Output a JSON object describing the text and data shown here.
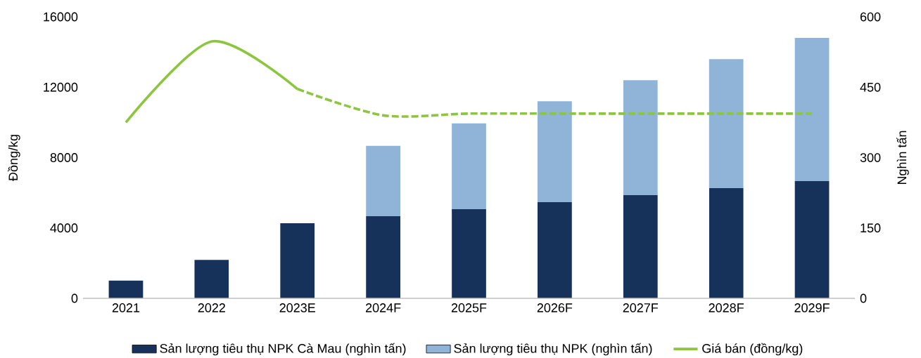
{
  "chart_data": {
    "type": "bar",
    "ylabel": "Đồng/kg",
    "y2label": "Nghìn tấn",
    "categories": [
      "2021",
      "2022",
      "2023E",
      "2024F",
      "2025F",
      "2026F",
      "2027F",
      "2028F",
      "2029F"
    ],
    "series": [
      {
        "name": "Sản lượng tiêu thụ NPK Cà Mau (nghìn tấn)",
        "axis": "y2",
        "color": "#17325a",
        "values": [
          38,
          82,
          160,
          175,
          190,
          205,
          220,
          235,
          250
        ]
      },
      {
        "name": "Sản lượng tiêu thụ NPK (nghìn tấn)",
        "axis": "y2",
        "color": "#8fb4d8",
        "values": [
          null,
          null,
          null,
          150,
          183,
          215,
          245,
          275,
          305
        ]
      },
      {
        "name": "Giá bán (đồng/kg)",
        "type": "line",
        "color": "#8cc63f",
        "line_style": "solid",
        "values": [
          10000,
          14600,
          11900,
          null,
          null,
          null,
          null,
          null,
          null
        ]
      },
      {
        "type": "line",
        "color": "#8cc63f",
        "line_style": "dashed",
        "values": [
          null,
          null,
          11900,
          10400,
          10500,
          10500,
          10500,
          10500,
          10500
        ]
      }
    ],
    "stacked": true,
    "ylim": [
      0,
      16000
    ],
    "yticks": [
      0,
      4000,
      8000,
      12000,
      16000
    ],
    "y2lim": [
      0,
      600
    ],
    "y2ticks": [
      0,
      150,
      300,
      450,
      600
    ],
    "legend": "bottom"
  }
}
